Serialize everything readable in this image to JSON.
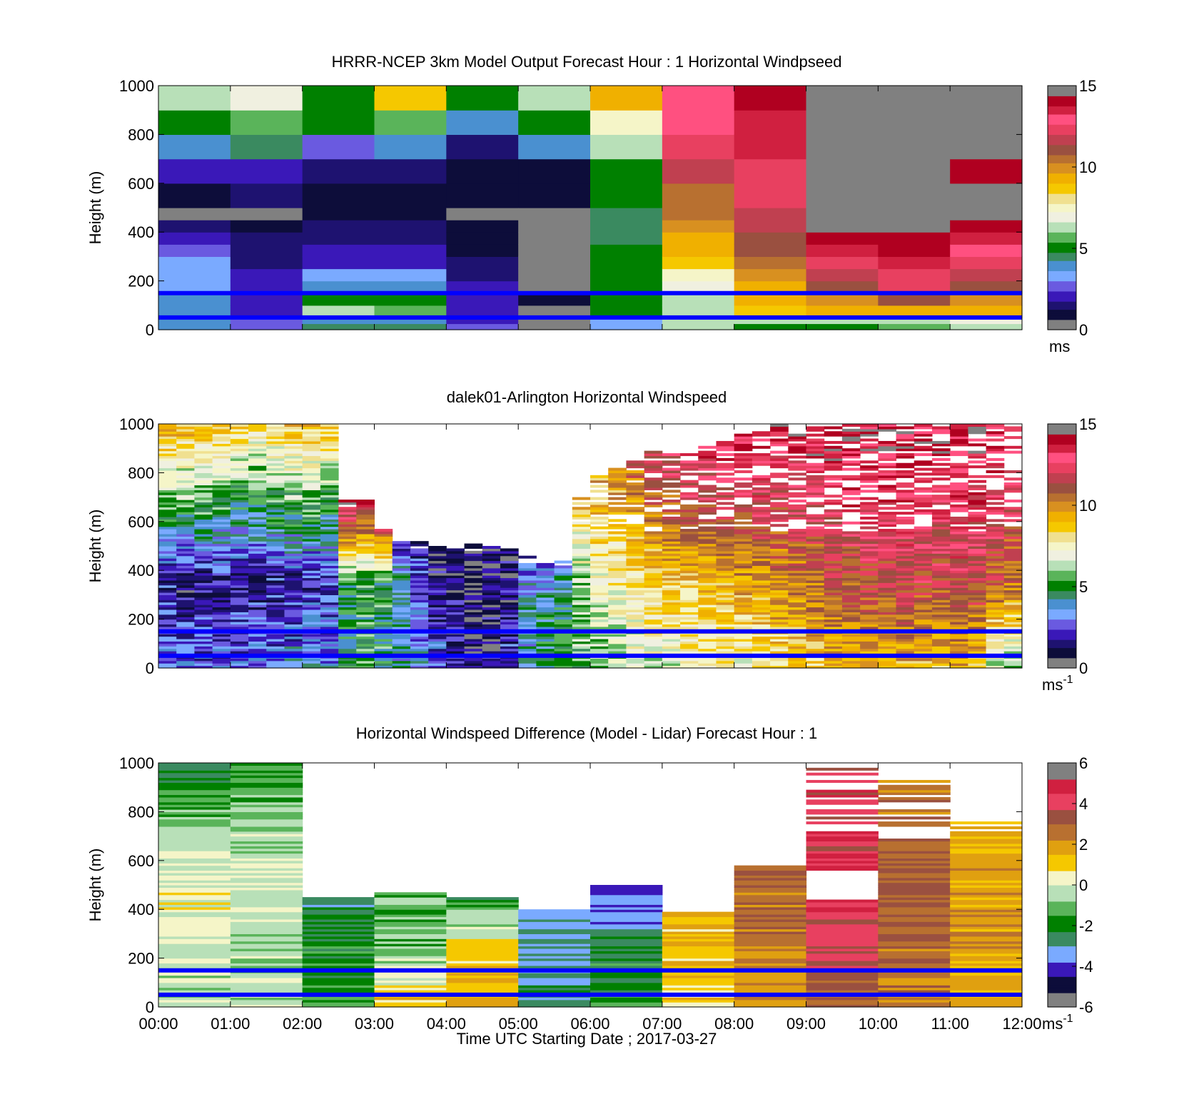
{
  "figure": {
    "xaxis_label": "Time UTC  Starting Date ; 2017-03-27",
    "time_ticks": [
      "00:00",
      "01:00",
      "02:00",
      "03:00",
      "04:00",
      "05:00",
      "06:00",
      "07:00",
      "08:00",
      "09:00",
      "10:00",
      "11:00",
      "12:00"
    ],
    "ylabel": "Height (m)",
    "y_ticks": [
      "0",
      "200",
      "400",
      "600",
      "800",
      "1000"
    ],
    "reference_lines_height_m": [
      50,
      150
    ],
    "reference_line_color": "#0000ff"
  },
  "colormap_speed": [
    "#808080",
    "#0d0d3a",
    "#1e1270",
    "#3a18b8",
    "#6a5ae0",
    "#7aaaff",
    "#4a90d0",
    "#3a8a60",
    "#008000",
    "#5ab45a",
    "#b8e0b8",
    "#f0f0e0",
    "#f5f5c8",
    "#f0e090",
    "#f5c800",
    "#f0b000",
    "#d89020",
    "#b87030",
    "#9a5040",
    "#c04050",
    "#e84060",
    "#ff5080",
    "#d02040",
    "#b00020",
    "#808080"
  ],
  "colormap_diff": [
    "#808080",
    "#0d0d3a",
    "#3a18b8",
    "#7aaaff",
    "#3a8a60",
    "#008000",
    "#5ab45a",
    "#b8e0b8",
    "#f5f5c8",
    "#f5c800",
    "#e0a010",
    "#b87030",
    "#9a5040",
    "#e84060",
    "#d02040",
    "#808080"
  ],
  "chart_data": [
    {
      "type": "heatmap",
      "title": "HRRR-NCEP 3km Model Output   Forecast Hour : 1 Horizontal Windpseed",
      "colorbar": {
        "ticks": [
          "0",
          "5",
          "10",
          "15"
        ],
        "range": [
          0,
          15
        ],
        "unit": "ms"
      },
      "ylim": [
        0,
        1000
      ],
      "x_hours": [
        0,
        1,
        2,
        3,
        4,
        5,
        6,
        7,
        8,
        9,
        10,
        11
      ],
      "height_levels_m": [
        0,
        25,
        50,
        100,
        150,
        200,
        250,
        300,
        350,
        400,
        450,
        500,
        600,
        700,
        800,
        900
      ],
      "values": [
        [
          4.0,
          2.5,
          4.2,
          4.3,
          2.4,
          0.5,
          3.4,
          6.0,
          5.0,
          5.0,
          5.5,
          6.0
        ],
        [
          4.0,
          2.5,
          4.0,
          4.0,
          2.2,
          0.4,
          3.0,
          6.5,
          6.5,
          6.0,
          6.5,
          7.0
        ],
        [
          3.8,
          2.0,
          6.0,
          5.5,
          2.2,
          0.5,
          5.0,
          6.0,
          8.5,
          9.0,
          9.0,
          9.0
        ],
        [
          3.8,
          2.2,
          5.0,
          5.0,
          2.0,
          0.6,
          4.8,
          6.5,
          9.0,
          10.0,
          11.0,
          10.0
        ],
        [
          3.5,
          2.0,
          3.8,
          3.8,
          1.8,
          0.2,
          4.8,
          7.0,
          9.5,
          11.0,
          12.0,
          11.0
        ],
        [
          3.3,
          1.8,
          3.5,
          3.5,
          1.6,
          0.5,
          5.0,
          7.5,
          10.0,
          11.5,
          12.5,
          11.5
        ],
        [
          3.0,
          1.7,
          2.0,
          2.2,
          1.2,
          0.5,
          5.0,
          8.5,
          10.5,
          12.5,
          13.5,
          12.0
        ],
        [
          2.8,
          1.5,
          1.8,
          2.0,
          1.0,
          0.5,
          4.8,
          9.0,
          11.0,
          13.5,
          14.0,
          13.0
        ],
        [
          2.3,
          1.2,
          1.5,
          1.6,
          0.8,
          0.4,
          4.6,
          9.5,
          11.0,
          14.0,
          14.0,
          13.5
        ],
        [
          1.6,
          0.9,
          1.2,
          1.3,
          0.6,
          0.3,
          4.6,
          10.0,
          11.5,
          14.5,
          15.0,
          14.0
        ],
        [
          0.5,
          0.5,
          0.6,
          0.7,
          0.3,
          0.2,
          4.4,
          10.5,
          11.5,
          15.0,
          15.0,
          14.5
        ],
        [
          1.0,
          1.2,
          1.0,
          1.1,
          0.6,
          0.6,
          4.8,
          10.5,
          12.0,
          15.0,
          15.0,
          14.5
        ],
        [
          2.0,
          2.0,
          1.2,
          1.5,
          0.7,
          0.8,
          5.0,
          11.5,
          12.5,
          15.0,
          15.0,
          14.0
        ],
        [
          3.8,
          4.2,
          2.5,
          3.8,
          1.5,
          3.6,
          6.0,
          12.0,
          13.5,
          15.0,
          15.0,
          14.5
        ],
        [
          5.0,
          5.5,
          4.8,
          5.5,
          3.8,
          4.8,
          7.2,
          13.0,
          13.5,
          15.0,
          15.0,
          15.0
        ],
        [
          6.5,
          7.0,
          5.2,
          8.5,
          4.8,
          6.5,
          9.0,
          13.0,
          14.0,
          15.0,
          15.0,
          15.0
        ]
      ]
    },
    {
      "type": "heatmap",
      "title": "dalek01-Arlington  Horizontal Windspeed",
      "colorbar": {
        "ticks": [
          "0",
          "5",
          "10",
          "15"
        ],
        "range": [
          0,
          15
        ],
        "unit": "ms-1"
      },
      "ylim": [
        0,
        1000
      ],
      "profile_top_m": [
        1000,
        1000,
        1000,
        1000,
        1000,
        1000,
        1000,
        1000,
        1000,
        1000,
        680,
        680,
        580,
        520,
        510,
        510,
        500,
        500,
        500,
        500,
        450,
        440,
        440,
        690,
        780,
        820,
        850,
        880,
        880,
        880,
        900,
        920,
        950,
        960,
        1000,
        1000,
        1000,
        1000,
        1000,
        1000,
        1000,
        1000,
        1000,
        1000,
        1000,
        1000,
        1000,
        980
      ],
      "profile_speed_low": [
        3.2,
        3.0,
        3.0,
        3.0,
        3.2,
        3.0,
        3.2,
        3.4,
        3.6,
        3.5,
        4.6,
        5.2,
        4.8,
        4.2,
        3.6,
        3.0,
        2.0,
        1.2,
        1.6,
        2.2,
        4.0,
        4.8,
        5.2,
        5.8,
        6.0,
        6.2,
        6.5,
        6.8,
        7.0,
        7.2,
        7.5,
        7.2,
        7.5,
        7.8,
        8.0,
        8.2,
        8.6,
        8.8,
        9.0,
        9.2,
        9.0,
        9.4,
        9.0,
        8.8,
        9.2,
        9.0,
        6.5,
        5.8
      ],
      "profile_speed_mid": [
        1.8,
        1.6,
        1.8,
        1.8,
        1.6,
        1.8,
        1.9,
        2.0,
        2.2,
        2.2,
        5.0,
        5.4,
        5.2,
        4.0,
        2.5,
        1.5,
        1.2,
        0.8,
        1.0,
        1.4,
        3.6,
        4.0,
        4.5,
        6.0,
        7.0,
        7.5,
        8.0,
        8.5,
        8.8,
        8.8,
        9.0,
        9.4,
        9.6,
        9.8,
        10.0,
        10.2,
        10.5,
        11.0,
        11.2,
        11.5,
        11.5,
        11.8,
        11.5,
        11.5,
        11.8,
        11.6,
        11.0,
        10.5
      ],
      "profile_speed_top": [
        9.5,
        9.2,
        9.0,
        9.0,
        8.5,
        8.0,
        8.5,
        9.0,
        9.0,
        8.5,
        14.0,
        13.0,
        12.0,
        2.2,
        1.5,
        1.2,
        1.0,
        1.0,
        1.2,
        1.4,
        2.5,
        2.8,
        3.0,
        9.0,
        9.5,
        10.0,
        11.0,
        12.0,
        12.5,
        13.0,
        13.0,
        13.5,
        13.5,
        14.0,
        13.5,
        14.0,
        14.0,
        14.0,
        14.2,
        14.0,
        14.0,
        14.2,
        14.0,
        13.8,
        14.0,
        14.0,
        13.5,
        13.0
      ]
    },
    {
      "type": "heatmap",
      "title": "Horizontal Windspeed Difference (Model - Lidar) Forecast Hour : 1",
      "colorbar": {
        "ticks": [
          "6",
          "4",
          "2",
          "0",
          "-2",
          "-4",
          "-6"
        ],
        "range": [
          -6,
          6
        ],
        "unit": "ms-1"
      },
      "ylim": [
        0,
        1000
      ],
      "x_hours": [
        0,
        1,
        2,
        3,
        4,
        5,
        6,
        7,
        8,
        9,
        10,
        11
      ],
      "column_top_m": [
        1000,
        1000,
        450,
        470,
        450,
        400,
        500,
        390,
        580,
        980,
        960,
        760
      ],
      "diff_low": [
        -0.5,
        -0.5,
        -1.5,
        1.5,
        1.5,
        -2.5,
        -1.5,
        1.0,
        2.0,
        3.0,
        2.5,
        1.5
      ],
      "diff_mid": [
        0.5,
        0.0,
        -2.0,
        -1.0,
        1.0,
        -3.0,
        -2.5,
        1.2,
        2.5,
        4.5,
        3.0,
        2.0
      ],
      "diff_top": [
        -2.5,
        -1.5,
        -2.5,
        -1.0,
        -2.0,
        -3.0,
        -4.5,
        1.0,
        3.0,
        4.0,
        2.5,
        1.5
      ]
    }
  ]
}
